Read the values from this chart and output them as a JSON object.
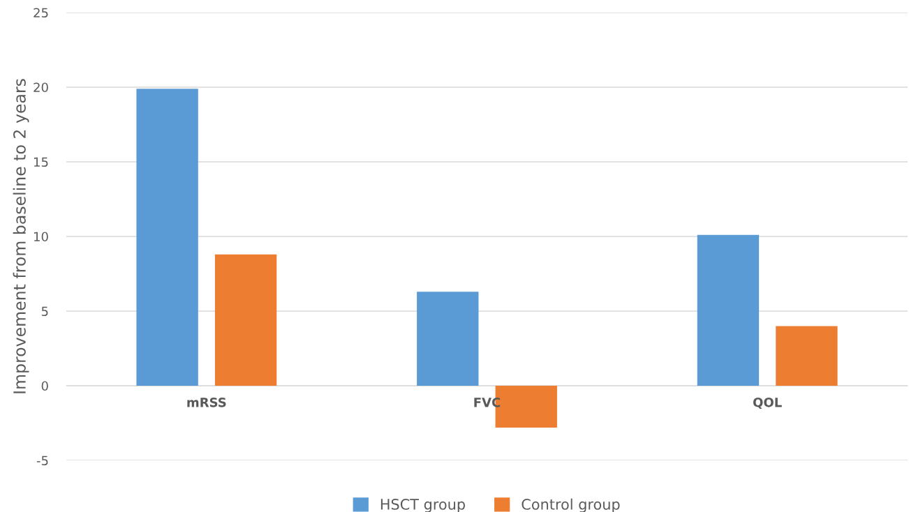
{
  "chart_data": {
    "type": "bar",
    "ylabel": "Improvement from baseline to 2 years",
    "categories": [
      "mRSS",
      "FVC",
      "QOL"
    ],
    "series": [
      {
        "name": "HSCT group",
        "color": "#5b9bd5",
        "values": [
          19.9,
          6.3,
          10.1
        ]
      },
      {
        "name": "Control group",
        "color": "#ed7d31",
        "values": [
          8.8,
          -2.8,
          4.0
        ]
      }
    ],
    "ylim": [
      -5,
      25
    ],
    "yticks": [
      -5,
      0,
      5,
      10,
      15,
      20,
      25
    ],
    "grid": "y",
    "legend": "bottom"
  }
}
